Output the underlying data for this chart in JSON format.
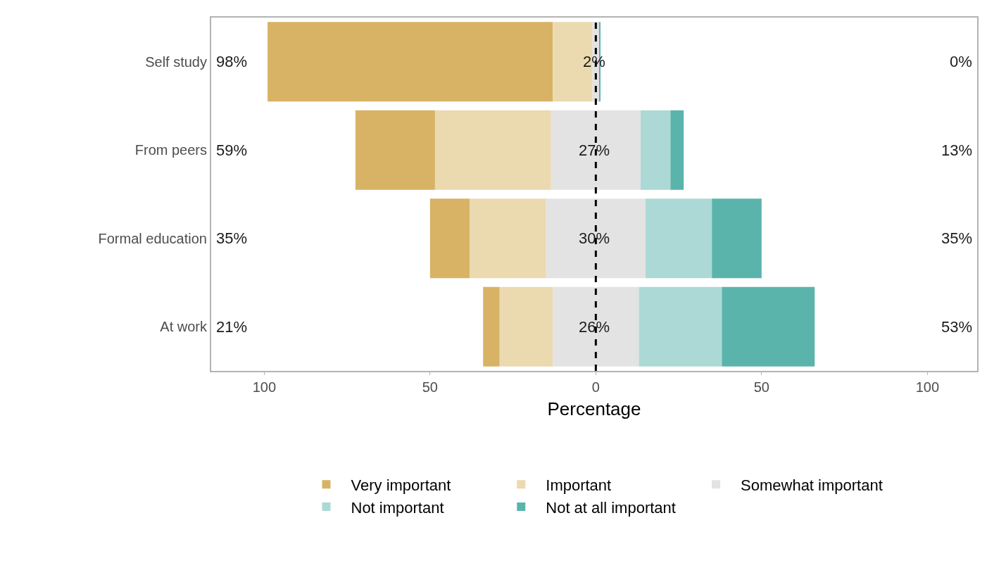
{
  "chart_data": {
    "type": "bar",
    "orientation": "horizontal",
    "categories": [
      "Self study",
      "From peers",
      "Formal education",
      "At work"
    ],
    "series": [
      {
        "name": "Very important",
        "color": "#d8b365",
        "values": [
          86,
          24,
          12,
          5
        ],
        "base": [
          -99,
          -72.5,
          -50,
          -34
        ]
      },
      {
        "name": "Important",
        "color": "#ebd9b0",
        "values": [
          12,
          35,
          23,
          16
        ],
        "base": [
          -13,
          -48.5,
          -38,
          -29
        ]
      },
      {
        "name": "Somewhat important",
        "color": "#e3e3e3",
        "values": [
          2,
          27,
          30,
          26
        ],
        "base": [
          -1,
          -13.5,
          -15,
          -13
        ]
      },
      {
        "name": "Not important",
        "color": "#acd9d5",
        "values": [
          0,
          9,
          20,
          25
        ],
        "base": [
          null,
          13.5,
          15,
          13
        ]
      },
      {
        "name": "Not at all important",
        "color": "#5ab4ac",
        "values": [
          0.3,
          4,
          15,
          28
        ],
        "base": [
          1,
          22.5,
          35,
          38
        ]
      }
    ],
    "xlim": [
      -116,
      115
    ],
    "xticks": [
      {
        "value": -100,
        "label": "100"
      },
      {
        "value": -50,
        "label": "50"
      },
      0,
      50,
      100
    ],
    "xlabel": "Percentage",
    "ref_lines": [
      {
        "axis": "x",
        "value": 0,
        "color": "#000000",
        "line_style": "dashed"
      }
    ],
    "annotations": [
      "98%",
      "2%",
      "0%",
      "59%",
      "27%",
      "13%",
      "35%",
      "30%",
      "35%",
      "21%",
      "26%",
      "53%"
    ],
    "legend": "bottom"
  }
}
